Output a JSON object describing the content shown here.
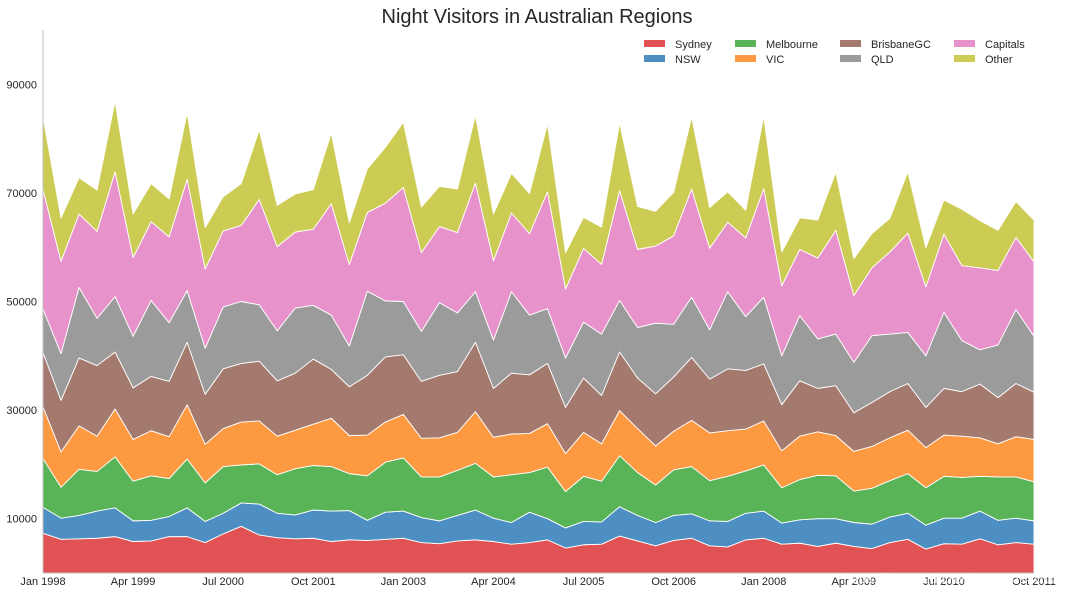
{
  "chart_data": {
    "type": "area",
    "stacked": true,
    "title": "Night Visitors in Australian Regions",
    "xlabel": "",
    "ylabel": "",
    "ylim": [
      0,
      100000
    ],
    "x_start": "Jan 1998",
    "x_end": "Oct 2011",
    "x_ticks": [
      "Jan 1998",
      "Apr 1999",
      "Jul 2000",
      "Oct 2001",
      "Jan 2003",
      "Apr 2004",
      "Jul 2005",
      "Oct 2006",
      "Jan 2008",
      "Apr 2009",
      "Jul 2010",
      "Oct 2011"
    ],
    "y_ticks": [
      10000,
      30000,
      50000,
      70000,
      90000
    ],
    "grid": false,
    "legend_position": "top-right",
    "colors": {
      "Sydney": "#e05253",
      "NSW": "#4d8fc2",
      "Melbourne": "#58b457",
      "VIC": "#fd9a41",
      "BrisbaneGC": "#a57a6e",
      "QLD": "#9b9b9b",
      "Capitals": "#e892cc",
      "Other": "#cccc55",
      "separator": "#ffffff",
      "axis": "#bfbfbf"
    },
    "series": [
      {
        "name": "Sydney",
        "values": [
          7300,
          6200,
          6300,
          6400,
          6700,
          5800,
          5900,
          6700,
          6700,
          5600,
          7200,
          8600,
          7000,
          6500,
          6300,
          6400,
          5800,
          6100,
          6000,
          6200,
          6400,
          5600,
          5400,
          5900,
          6100,
          5800,
          5300,
          5600,
          6100,
          4600,
          5200,
          5300,
          6800,
          5900,
          5000,
          6000,
          6400,
          5000,
          4800,
          6100,
          6400,
          5300,
          5500,
          4900,
          5500,
          4900,
          4500,
          5600,
          6200,
          4400,
          5400,
          5300,
          6300,
          5200,
          5600,
          5300
        ]
      },
      {
        "name": "NSW",
        "values": [
          4800,
          3900,
          4300,
          5000,
          5300,
          3800,
          3800,
          3700,
          5300,
          3900,
          3800,
          4300,
          5700,
          4500,
          4400,
          5200,
          5600,
          5400,
          3700,
          5000,
          5000,
          4600,
          4200,
          4700,
          5500,
          4300,
          4000,
          5600,
          3900,
          3700,
          4300,
          4100,
          5400,
          4700,
          4300,
          4600,
          4500,
          4600,
          4700,
          4900,
          5000,
          3900,
          4300,
          5100,
          4500,
          4400,
          4500,
          4700,
          4800,
          4400,
          4700,
          4800,
          5100,
          4500,
          4500,
          4300
        ]
      },
      {
        "name": "Melbourne",
        "values": [
          9000,
          5700,
          8500,
          7300,
          9400,
          7300,
          8200,
          7000,
          9000,
          7100,
          8600,
          7000,
          7400,
          7100,
          8500,
          8200,
          8200,
          6800,
          8200,
          9200,
          9800,
          7500,
          8100,
          8300,
          8600,
          7600,
          8800,
          7300,
          9500,
          6700,
          8300,
          7500,
          9400,
          7900,
          6900,
          8400,
          8700,
          7400,
          8300,
          7800,
          8500,
          6500,
          7400,
          8000,
          7900,
          5800,
          6600,
          6700,
          7300,
          6900,
          7700,
          7500,
          6400,
          8000,
          7600,
          7200
        ]
      },
      {
        "name": "VIC",
        "values": [
          9500,
          6500,
          8000,
          6500,
          8800,
          7700,
          8300,
          7700,
          10000,
          7100,
          7000,
          7900,
          7900,
          7100,
          7100,
          7600,
          8900,
          7000,
          7500,
          7400,
          8000,
          7100,
          7200,
          7000,
          9500,
          7300,
          7500,
          7200,
          8000,
          7000,
          8100,
          6900,
          8300,
          8100,
          7200,
          7100,
          8500,
          8800,
          8400,
          7700,
          8100,
          6800,
          8000,
          8000,
          7400,
          7300,
          7700,
          7900,
          8000,
          7400,
          7600,
          7600,
          7100,
          6100,
          7400,
          7800
        ]
      },
      {
        "name": "BrisbaneGC",
        "values": [
          10000,
          9500,
          12500,
          13000,
          10500,
          9500,
          10000,
          10200,
          11500,
          9200,
          11000,
          10800,
          11000,
          10200,
          10500,
          12000,
          9000,
          9000,
          11000,
          12000,
          11000,
          10500,
          11500,
          11200,
          12800,
          9000,
          11200,
          10800,
          11100,
          8500,
          10000,
          8900,
          10800,
          9300,
          9600,
          10000,
          11600,
          9900,
          11400,
          10800,
          10500,
          8500,
          10200,
          8000,
          9200,
          7100,
          8100,
          8500,
          8600,
          7400,
          8600,
          8200,
          9900,
          8500,
          9800,
          8700
        ]
      },
      {
        "name": "QLD",
        "values": [
          8000,
          8600,
          13000,
          8700,
          10200,
          9500,
          14000,
          10800,
          9500,
          8500,
          11400,
          11400,
          10400,
          9200,
          12000,
          9900,
          10000,
          7500,
          15500,
          10300,
          9800,
          9200,
          13400,
          10800,
          9300,
          8900,
          15000,
          11000,
          10100,
          9100,
          10300,
          11300,
          9500,
          9300,
          13000,
          9700,
          11100,
          9100,
          14200,
          9900,
          12300,
          9000,
          12000,
          9100,
          9500,
          9300,
          12300,
          10600,
          9400,
          9500,
          14000,
          9400,
          6300,
          9700,
          13600,
          10300
        ]
      },
      {
        "name": "Capitals",
        "values": [
          22000,
          17000,
          13500,
          16000,
          23000,
          14500,
          14500,
          15800,
          20500,
          14600,
          14000,
          14000,
          19400,
          15500,
          14000,
          14000,
          20500,
          15000,
          14500,
          18000,
          21000,
          14500,
          14000,
          14800,
          20000,
          14600,
          14500,
          15000,
          21500,
          12700,
          13600,
          12800,
          20200,
          14400,
          14200,
          16300,
          19900,
          15000,
          12800,
          14500,
          20000,
          12900,
          12200,
          14900,
          19100,
          12300,
          12500,
          15100,
          18300,
          12700,
          14400,
          13800,
          15100,
          13700,
          13300,
          13700
        ]
      },
      {
        "name": "Other",
        "values": [
          13400,
          8000,
          6700,
          7600,
          13000,
          8000,
          7000,
          7000,
          12300,
          7600,
          6300,
          7700,
          12800,
          7600,
          7000,
          7300,
          13000,
          7700,
          8000,
          10300,
          12000,
          8400,
          7400,
          8000,
          12500,
          8600,
          7300,
          7400,
          12500,
          6700,
          5700,
          6900,
          12500,
          7900,
          6400,
          8000,
          13300,
          7500,
          5600,
          5100,
          13300,
          6200,
          5800,
          7000,
          10700,
          6800,
          6300,
          6200,
          11300,
          7200,
          6300,
          10400,
          8700,
          7400,
          6600,
          7700
        ]
      }
    ]
  },
  "watermark": "https://blog.csdn.net/qq_30614016"
}
